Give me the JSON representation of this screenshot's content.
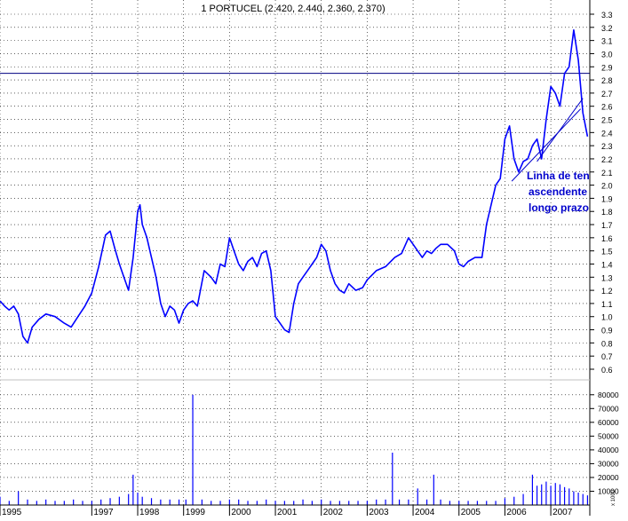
{
  "chart_data": [
    {
      "type": "line",
      "title": "1 PORTUCEL (2.420, 2.440, 2.360, 2.370)",
      "xlabel": "",
      "ylabel": "",
      "x_ticks": [
        "1995",
        "1997",
        "1998",
        "1999",
        "2000",
        "2001",
        "2002",
        "2003",
        "2004",
        "2005",
        "2006",
        "2007"
      ],
      "x_domain": [
        1995.0,
        2007.85
      ],
      "y_ticks": [
        0.6,
        0.7,
        0.8,
        0.9,
        1.0,
        1.1,
        1.2,
        1.3,
        1.4,
        1.5,
        1.6,
        1.7,
        1.8,
        1.9,
        2.0,
        2.1,
        2.2,
        2.3,
        2.4,
        2.5,
        2.6,
        2.7,
        2.8,
        2.9,
        3.0,
        3.1,
        3.2,
        3.3
      ],
      "ylim": [
        0.6,
        3.3
      ],
      "grid": true,
      "line_color": "#0000ff",
      "series": [
        {
          "x": [
            1995.0,
            1995.1,
            1995.2,
            1995.3,
            1995.4,
            1995.5,
            1995.6,
            1995.7,
            1995.85,
            1996.0,
            1996.2,
            1996.4,
            1996.55,
            1996.7,
            1996.85,
            1997.0,
            1997.15,
            1997.3,
            1997.4,
            1997.5,
            1997.6,
            1997.7,
            1997.8,
            1997.9,
            1998.0,
            1998.05,
            1998.1,
            1998.2,
            1998.3,
            1998.4,
            1998.5,
            1998.6,
            1998.7,
            1998.8,
            1998.9,
            1999.0,
            1999.1,
            1999.2,
            1999.3,
            1999.45,
            1999.6,
            1999.7,
            1999.8,
            1999.9,
            2000.0,
            2000.1,
            2000.2,
            2000.3,
            2000.4,
            2000.5,
            2000.6,
            2000.7,
            2000.8,
            2000.9,
            2001.0,
            2001.1,
            2001.2,
            2001.3,
            2001.4,
            2001.5,
            2001.6,
            2001.7,
            2001.8,
            2001.9,
            2002.0,
            2002.1,
            2002.2,
            2002.3,
            2002.4,
            2002.5,
            2002.6,
            2002.75,
            2002.9,
            2003.0,
            2003.2,
            2003.4,
            2003.6,
            2003.75,
            2003.9,
            2004.0,
            2004.1,
            2004.2,
            2004.3,
            2004.4,
            2004.5,
            2004.6,
            2004.75,
            2004.9,
            2005.0,
            2005.1,
            2005.2,
            2005.35,
            2005.5,
            2005.6,
            2005.7,
            2005.8,
            2005.9,
            2006.0,
            2006.1,
            2006.2,
            2006.3,
            2006.4,
            2006.5,
            2006.6,
            2006.7,
            2006.8,
            2006.9,
            2007.0,
            2007.1,
            2007.2,
            2007.3,
            2007.4,
            2007.5,
            2007.6,
            2007.7,
            2007.8
          ],
          "y": [
            1.12,
            1.08,
            1.05,
            1.08,
            1.02,
            0.85,
            0.8,
            0.92,
            0.98,
            1.02,
            1.0,
            0.95,
            0.92,
            1.0,
            1.08,
            1.18,
            1.38,
            1.62,
            1.65,
            1.52,
            1.4,
            1.3,
            1.2,
            1.45,
            1.8,
            1.85,
            1.7,
            1.6,
            1.45,
            1.3,
            1.1,
            1.0,
            1.08,
            1.05,
            0.95,
            1.05,
            1.1,
            1.12,
            1.08,
            1.35,
            1.3,
            1.25,
            1.4,
            1.38,
            1.6,
            1.5,
            1.4,
            1.35,
            1.42,
            1.45,
            1.38,
            1.48,
            1.5,
            1.35,
            1.0,
            0.95,
            0.9,
            0.88,
            1.1,
            1.25,
            1.3,
            1.35,
            1.4,
            1.45,
            1.55,
            1.5,
            1.35,
            1.25,
            1.2,
            1.18,
            1.25,
            1.2,
            1.22,
            1.28,
            1.35,
            1.38,
            1.45,
            1.48,
            1.6,
            1.55,
            1.5,
            1.45,
            1.5,
            1.48,
            1.52,
            1.55,
            1.55,
            1.5,
            1.4,
            1.38,
            1.42,
            1.45,
            1.45,
            1.7,
            1.85,
            2.0,
            2.05,
            2.35,
            2.45,
            2.2,
            2.1,
            2.18,
            2.2,
            2.3,
            2.35,
            2.2,
            2.5,
            2.75,
            2.7,
            2.6,
            2.85,
            2.9,
            3.18,
            2.95,
            2.55,
            2.37
          ]
        }
      ],
      "reference_line": {
        "value": 2.85,
        "color": "#000080"
      },
      "annotation": {
        "lines": [
          "Linha de ten",
          "ascendente",
          "longo prazo"
        ],
        "color": "#0000cc",
        "trend_line": {
          "x": [
            2006.15,
            2007.65
          ],
          "y": [
            2.03,
            2.58
          ]
        },
        "trend_line_2": {
          "x": [
            2006.7,
            2007.7
          ],
          "y": [
            2.18,
            2.66
          ]
        }
      }
    },
    {
      "type": "bar",
      "title": "",
      "xlabel": "",
      "ylabel": "",
      "y_ticks": [
        10000,
        20000,
        30000,
        40000,
        50000,
        60000,
        70000,
        80000
      ],
      "ylim": [
        0,
        85000
      ],
      "unit_label": "x 1000",
      "bar_color": "#0000ff",
      "x": [
        1995.0,
        1995.2,
        1995.4,
        1995.6,
        1995.8,
        1996.0,
        1996.2,
        1996.4,
        1996.6,
        1996.8,
        1997.0,
        1997.2,
        1997.4,
        1997.6,
        1997.8,
        1997.9,
        1998.0,
        1998.1,
        1998.3,
        1998.5,
        1998.7,
        1998.9,
        1999.05,
        1999.2,
        1999.4,
        1999.6,
        1999.8,
        2000.0,
        2000.2,
        2000.4,
        2000.6,
        2000.8,
        2001.0,
        2001.2,
        2001.4,
        2001.6,
        2001.8,
        2002.0,
        2002.2,
        2002.4,
        2002.6,
        2002.8,
        2003.0,
        2003.2,
        2003.4,
        2003.55,
        2003.7,
        2003.9,
        2004.1,
        2004.3,
        2004.45,
        2004.6,
        2004.8,
        2005.0,
        2005.2,
        2005.4,
        2005.6,
        2005.8,
        2006.0,
        2006.2,
        2006.4,
        2006.6,
        2006.7,
        2006.8,
        2006.9,
        2007.0,
        2007.1,
        2007.2,
        2007.3,
        2007.4,
        2007.5,
        2007.6,
        2007.7,
        2007.8
      ],
      "values": [
        6000,
        3000,
        10000,
        4000,
        3000,
        4000,
        3000,
        3000,
        4000,
        3000,
        3000,
        4000,
        5000,
        6000,
        8000,
        22000,
        9000,
        6000,
        5000,
        4000,
        4000,
        4000,
        4000,
        80000,
        4000,
        3000,
        3000,
        4000,
        4000,
        3000,
        3000,
        4000,
        3000,
        3000,
        3000,
        4000,
        3000,
        4000,
        3000,
        3000,
        3000,
        3000,
        3000,
        4000,
        4000,
        38000,
        4000,
        4000,
        12000,
        4000,
        22000,
        4000,
        3000,
        3000,
        3000,
        3000,
        3000,
        3000,
        5000,
        6000,
        8000,
        22000,
        14000,
        15000,
        17000,
        14000,
        16000,
        15000,
        13000,
        12000,
        10000,
        9000,
        8000,
        7000
      ]
    }
  ]
}
